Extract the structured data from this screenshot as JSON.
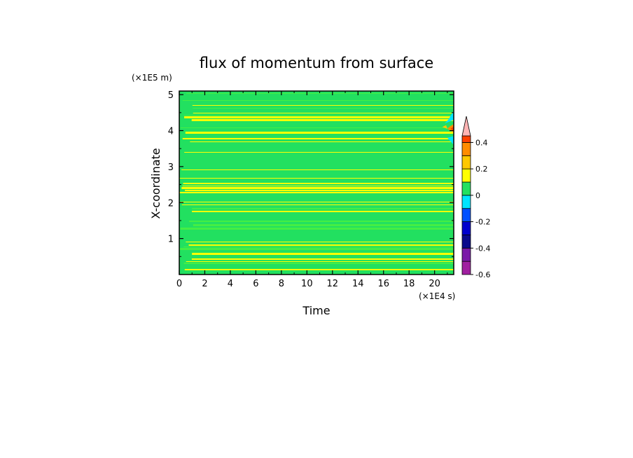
{
  "chart_data": {
    "type": "heatmap",
    "title": "flux of momentum from surface",
    "xlabel": "Time",
    "ylabel": "X-coordinate",
    "x_unit": "(×1E4 s)",
    "y_unit": "(×1E5 m)",
    "xlim": [
      0,
      21.5
    ],
    "ylim": [
      0,
      5.1
    ],
    "x_ticks": [
      0,
      2,
      4,
      6,
      8,
      10,
      12,
      14,
      16,
      18,
      20
    ],
    "y_ticks": [
      1,
      2,
      3,
      4,
      5
    ],
    "colorbar": {
      "levels": [
        -0.6,
        -0.5,
        -0.4,
        -0.3,
        -0.2,
        -0.1,
        0,
        0.1,
        0.2,
        0.3,
        0.4,
        0.45
      ],
      "labels": [
        "-0.6",
        "-0.4",
        "-0.2",
        "0",
        "0.2",
        "0.4"
      ],
      "label_values": [
        -0.6,
        -0.4,
        -0.2,
        0,
        0.2,
        0.4
      ],
      "colors": [
        "#a020a0",
        "#7a1aa8",
        "#0a0a8c",
        "#0000cd",
        "#0050ff",
        "#00e5ff",
        "#22e060",
        "#ffff00",
        "#ffc800",
        "#ff8c00",
        "#ff4000",
        "#ff8080"
      ],
      "extend_max_color": "#ffb4b4"
    },
    "field_description_colors": {
      "band_positive": "#ffff00",
      "band_zero": "#22e060",
      "band_near_zero": "#44ee44"
    }
  }
}
